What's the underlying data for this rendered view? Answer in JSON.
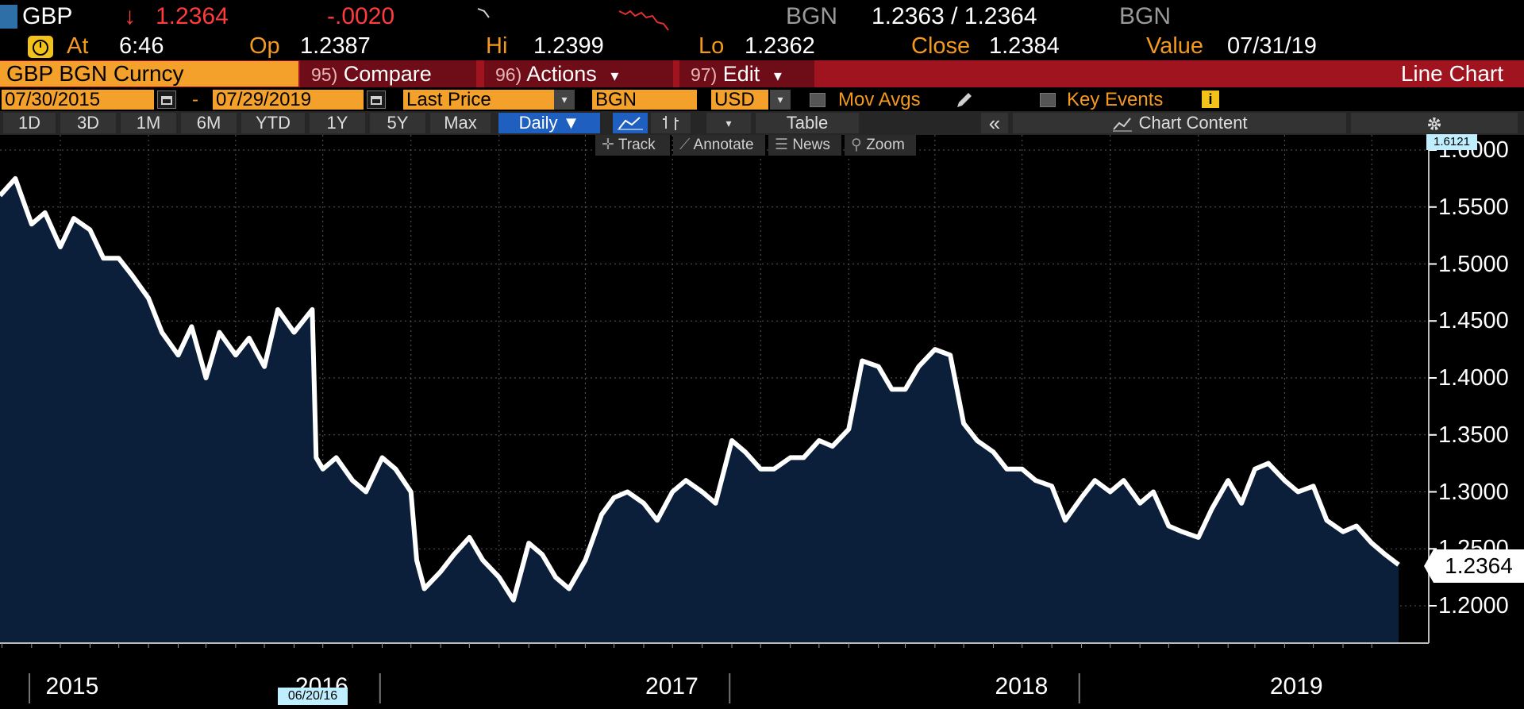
{
  "quote": {
    "ticker": "GBP",
    "arrow": "↓",
    "last": "1.2364",
    "change": "-.0020",
    "source_left": "BGN",
    "bid_ask": "1.2363 / 1.2364",
    "source_right": "BGN"
  },
  "detail": {
    "at_label": "At",
    "at_value": "6:46",
    "op_label": "Op",
    "op_value": "1.2387",
    "hi_label": "Hi",
    "hi_value": "1.2399",
    "lo_label": "Lo",
    "lo_value": "1.2362",
    "close_label": "Close",
    "close_value": "1.2384",
    "value_label": "Value",
    "value_date": "07/31/19"
  },
  "function_bar": {
    "security": "GBP BGN Curncy",
    "compare_num": "95)",
    "compare": "Compare",
    "actions_num": "96)",
    "actions": "Actions",
    "edit_num": "97)",
    "edit": "Edit",
    "chart_type": "Line Chart",
    "dropdown_arrow": "▾"
  },
  "settings": {
    "start_date": "07/30/2015",
    "dash": "-",
    "end_date": "07/29/2019",
    "field": "Last Price",
    "source": "BGN",
    "currency": "USD",
    "mov_avgs": "Mov Avgs",
    "key_events": "Key Events",
    "info": "i"
  },
  "range_bar": {
    "ranges": [
      "1D",
      "3D",
      "1M",
      "6M",
      "YTD",
      "1Y",
      "5Y",
      "Max"
    ],
    "frequency": "Daily ▼",
    "table": "Table",
    "collapse": "«",
    "chart_content": "Chart Content"
  },
  "chart_tools": {
    "track": "Track",
    "annotate": "Annotate",
    "news": "News",
    "zoom": "Zoom"
  },
  "chart_data": {
    "type": "area",
    "title": "",
    "x_start": "2015-07-30",
    "x_end": "2019-07-29",
    "x_labels": [
      "2015",
      "2016",
      "2017",
      "2018",
      "2019"
    ],
    "y_ticks": [
      "1.6000",
      "1.5500",
      "1.5000",
      "1.4500",
      "1.4000",
      "1.3500",
      "1.3000",
      "1.2500",
      "1.2000"
    ],
    "ylim": [
      1.165,
      1.61
    ],
    "last_value": "1.2364",
    "max_flag": "1.6121",
    "crosshair_date": "06/20/16",
    "grid": true,
    "line_color": "#ffffff",
    "fill_color": "#0b1e3a",
    "x": [
      "2015-07-30",
      "2015-08-15",
      "2015-09-01",
      "2015-09-15",
      "2015-10-01",
      "2015-10-15",
      "2015-11-01",
      "2015-11-15",
      "2015-12-01",
      "2015-12-15",
      "2016-01-01",
      "2016-01-15",
      "2016-02-01",
      "2016-02-15",
      "2016-03-01",
      "2016-03-15",
      "2016-04-01",
      "2016-04-15",
      "2016-05-01",
      "2016-05-15",
      "2016-06-01",
      "2016-06-20",
      "2016-06-24",
      "2016-07-01",
      "2016-07-15",
      "2016-08-01",
      "2016-08-15",
      "2016-09-01",
      "2016-09-15",
      "2016-10-01",
      "2016-10-07",
      "2016-10-15",
      "2016-11-01",
      "2016-11-15",
      "2016-12-01",
      "2016-12-15",
      "2017-01-01",
      "2017-01-16",
      "2017-02-01",
      "2017-02-15",
      "2017-03-01",
      "2017-03-15",
      "2017-04-01",
      "2017-04-18",
      "2017-05-01",
      "2017-05-15",
      "2017-06-01",
      "2017-06-15",
      "2017-07-01",
      "2017-07-15",
      "2017-08-01",
      "2017-08-15",
      "2017-09-01",
      "2017-09-15",
      "2017-10-01",
      "2017-10-15",
      "2017-11-01",
      "2017-11-15",
      "2017-12-01",
      "2017-12-15",
      "2018-01-01",
      "2018-01-15",
      "2018-02-01",
      "2018-02-15",
      "2018-03-01",
      "2018-03-15",
      "2018-04-01",
      "2018-04-17",
      "2018-05-01",
      "2018-05-15",
      "2018-06-01",
      "2018-06-15",
      "2018-07-01",
      "2018-07-15",
      "2018-08-01",
      "2018-08-15",
      "2018-09-01",
      "2018-09-15",
      "2018-10-01",
      "2018-10-15",
      "2018-11-01",
      "2018-11-15",
      "2018-12-01",
      "2018-12-15",
      "2019-01-01",
      "2019-01-15",
      "2019-02-01",
      "2019-02-15",
      "2019-03-01",
      "2019-03-15",
      "2019-04-01",
      "2019-04-15",
      "2019-05-01",
      "2019-05-15",
      "2019-06-01",
      "2019-06-15",
      "2019-07-01",
      "2019-07-15",
      "2019-07-29"
    ],
    "values": [
      1.56,
      1.575,
      1.535,
      1.545,
      1.515,
      1.54,
      1.53,
      1.505,
      1.505,
      1.49,
      1.47,
      1.44,
      1.42,
      1.445,
      1.4,
      1.44,
      1.42,
      1.435,
      1.41,
      1.46,
      1.44,
      1.46,
      1.33,
      1.32,
      1.33,
      1.31,
      1.3,
      1.33,
      1.32,
      1.3,
      1.24,
      1.215,
      1.23,
      1.245,
      1.26,
      1.24,
      1.225,
      1.205,
      1.255,
      1.245,
      1.225,
      1.215,
      1.24,
      1.28,
      1.295,
      1.3,
      1.29,
      1.275,
      1.3,
      1.31,
      1.3,
      1.29,
      1.345,
      1.335,
      1.32,
      1.32,
      1.33,
      1.33,
      1.345,
      1.34,
      1.355,
      1.415,
      1.41,
      1.39,
      1.39,
      1.41,
      1.425,
      1.42,
      1.36,
      1.345,
      1.335,
      1.32,
      1.32,
      1.31,
      1.305,
      1.275,
      1.295,
      1.31,
      1.3,
      1.31,
      1.29,
      1.3,
      1.27,
      1.265,
      1.26,
      1.285,
      1.31,
      1.29,
      1.32,
      1.325,
      1.31,
      1.3,
      1.305,
      1.275,
      1.265,
      1.27,
      1.255,
      1.245,
      1.236
    ]
  }
}
